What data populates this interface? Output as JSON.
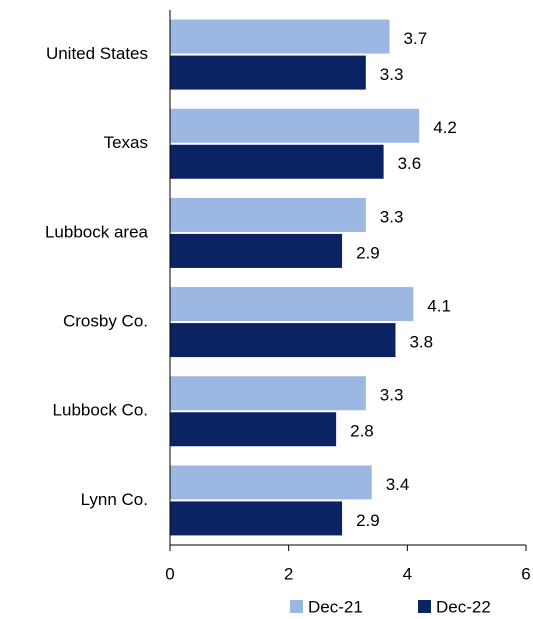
{
  "chart_data": {
    "type": "bar",
    "orientation": "horizontal",
    "categories": [
      "United States",
      "Texas",
      "Lubbock area",
      "Crosby Co.",
      "Lubbock Co.",
      "Lynn Co."
    ],
    "series": [
      {
        "name": "Dec-21",
        "color": "#9db7e3",
        "values": [
          3.7,
          4.2,
          3.3,
          4.1,
          3.3,
          3.4
        ]
      },
      {
        "name": "Dec-22",
        "color": "#0b2263",
        "values": [
          3.3,
          3.6,
          2.9,
          3.8,
          2.8,
          2.9
        ]
      }
    ],
    "xlim": [
      0,
      6
    ],
    "xticks": [
      0,
      2,
      4,
      6
    ],
    "grid": false,
    "legend": "bottom"
  }
}
